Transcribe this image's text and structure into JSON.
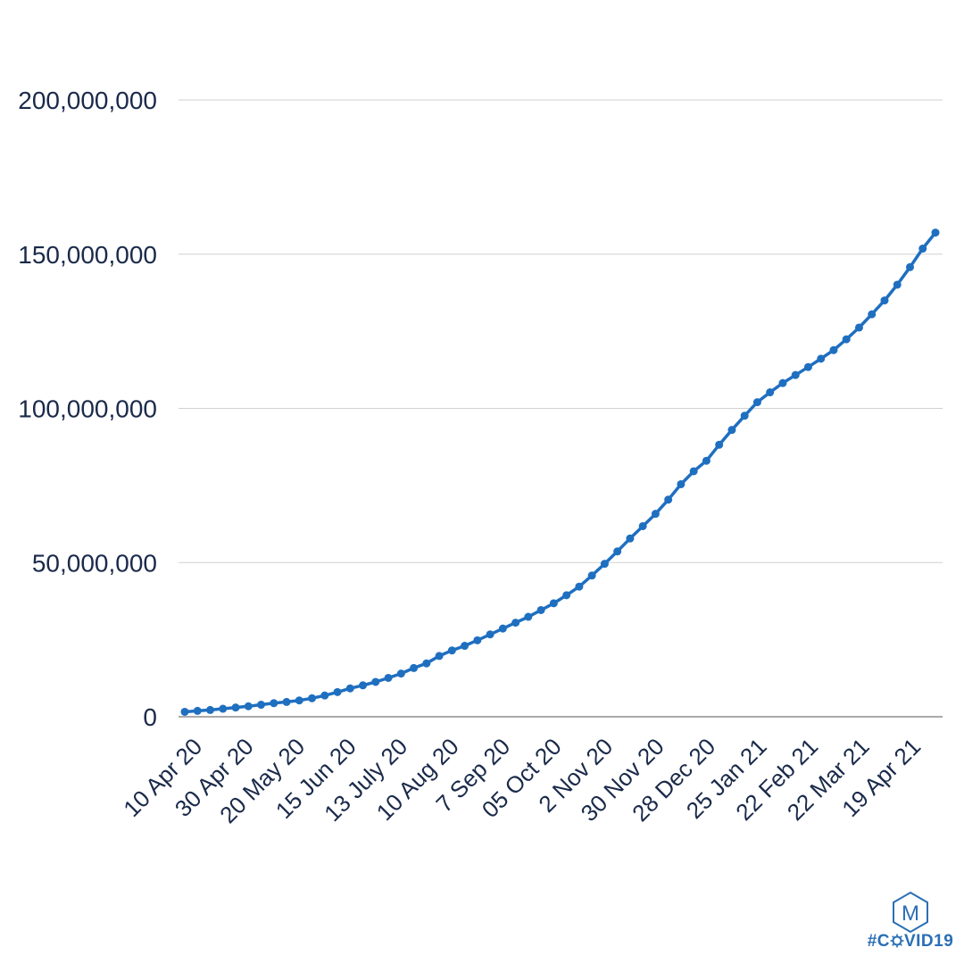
{
  "chart_data": {
    "type": "line",
    "title": "",
    "xlabel": "",
    "ylabel": "",
    "ylim": [
      0,
      200000000
    ],
    "grid": true,
    "legend": "none",
    "y_ticks": [
      "0",
      "50,000,000",
      "100,000,000",
      "150,000,000",
      "200,000,000"
    ],
    "x_tick_labels": [
      "10 Apr 20",
      "30 Apr 20",
      "20 May 20",
      "15 Jun 20",
      "13 July 20",
      "10 Aug 20",
      "7 Sep 20",
      "05 Oct 20",
      "2 Nov 20",
      "30 Nov 20",
      "28 Dec 20",
      "25 Jan 21",
      "22 Feb 21",
      "22 Mar 21",
      "19 Apr 21"
    ],
    "line_color": "#1f6fc0",
    "series": [
      {
        "values": [
          1600000,
          1900000,
          2200000,
          2600000,
          3000000,
          3400000,
          3900000,
          4400000,
          4800000,
          5300000,
          6000000,
          6900000,
          8000000,
          9200000,
          10200000,
          11300000,
          12600000,
          14000000,
          15800000,
          17300000,
          19700000,
          21500000,
          23000000,
          24800000,
          26700000,
          28600000,
          30500000,
          32400000,
          34600000,
          36800000,
          39400000,
          42200000,
          45800000,
          49600000,
          53600000,
          57800000,
          61800000,
          65800000,
          70400000,
          75400000,
          79600000,
          83000000,
          88200000,
          93000000,
          97600000,
          102000000,
          105200000,
          108200000,
          110800000,
          113400000,
          116100000,
          118900000,
          122400000,
          126200000,
          130500000,
          135000000,
          140100000,
          145800000,
          151800000,
          157000000
        ]
      }
    ]
  },
  "logo": {
    "letter": "M",
    "tag_prefix": "#C",
    "tag_suffix": "VID19",
    "color": "#2a6fb5"
  }
}
